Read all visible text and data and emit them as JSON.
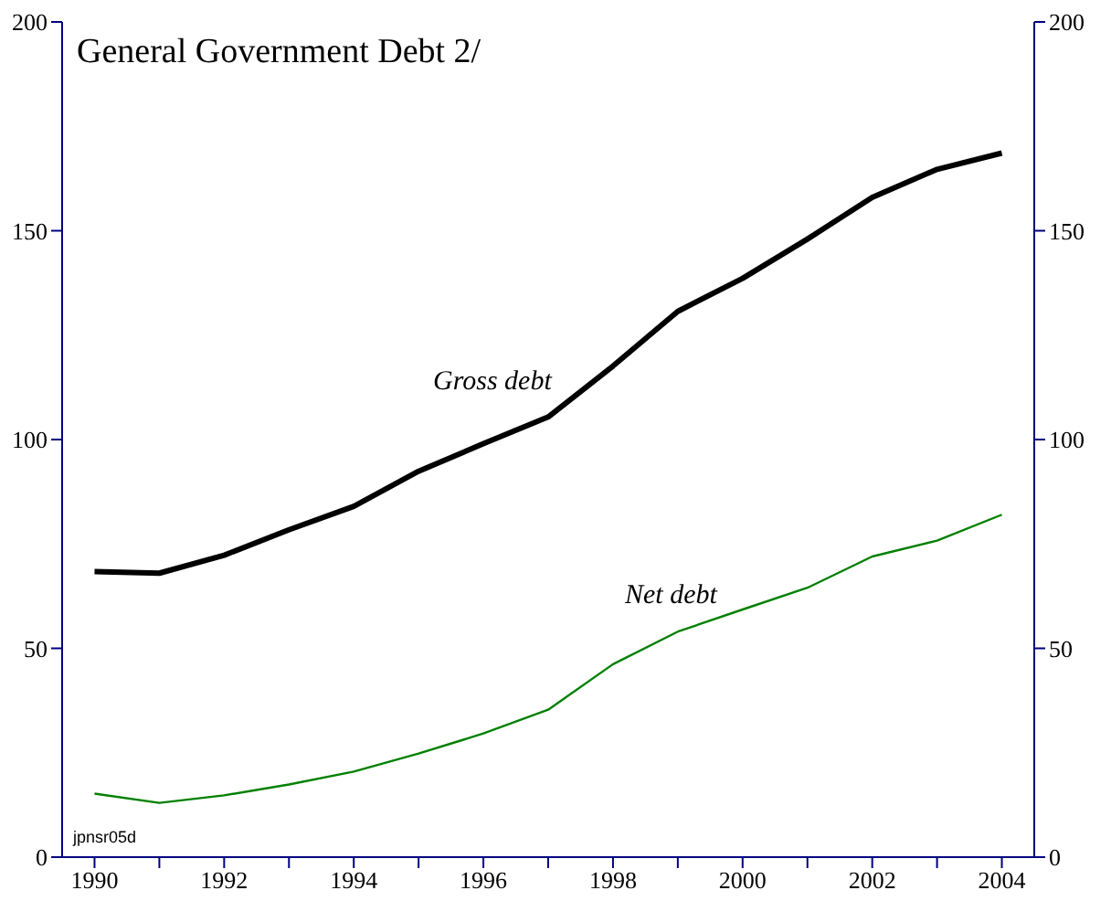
{
  "chart_data": {
    "type": "line",
    "title": "General Government Debt 2/",
    "x": [
      1990,
      1991,
      1992,
      1993,
      1994,
      1995,
      1996,
      1997,
      1998,
      1999,
      2000,
      2001,
      2002,
      2003,
      2004
    ],
    "series": [
      {
        "color": "#000000",
        "values": [
          68.4,
          68,
          72.3,
          78.4,
          84,
          92.4,
          99,
          105.4,
          117.6,
          130.7,
          138.6,
          148,
          158,
          164.7,
          168.6
        ]
      },
      {
        "color": "#008000",
        "values": [
          15.2,
          13,
          14.8,
          17.4,
          20.5,
          24.8,
          29.6,
          35.3,
          46.2,
          54,
          59.3,
          64.5,
          72,
          75.8,
          82
        ]
      }
    ],
    "xlim": [
      1989.5,
      2004.5
    ],
    "xticks": [
      1990,
      {
        "value": 1991,
        "label": null
      },
      1992,
      {
        "value": 1993,
        "label": null
      },
      1994,
      {
        "value": 1995,
        "label": null
      },
      1996,
      {
        "value": 1997,
        "label": null
      },
      1998,
      {
        "value": 1999,
        "label": null
      },
      2000,
      {
        "value": 2001,
        "label": null
      },
      2002,
      {
        "value": 2003,
        "label": null
      },
      2004
    ],
    "ylim": [
      0,
      200
    ],
    "yticks": [
      0,
      50,
      100,
      150,
      200
    ],
    "y2lim": [
      0,
      200
    ],
    "y2ticks": [
      0,
      50,
      100,
      150,
      200
    ],
    "annotations": [
      "Gross debt",
      "Net debt",
      "jpnsr05d"
    ],
    "grid": false,
    "legend": false,
    "marker": "none",
    "line_style": "solid"
  }
}
